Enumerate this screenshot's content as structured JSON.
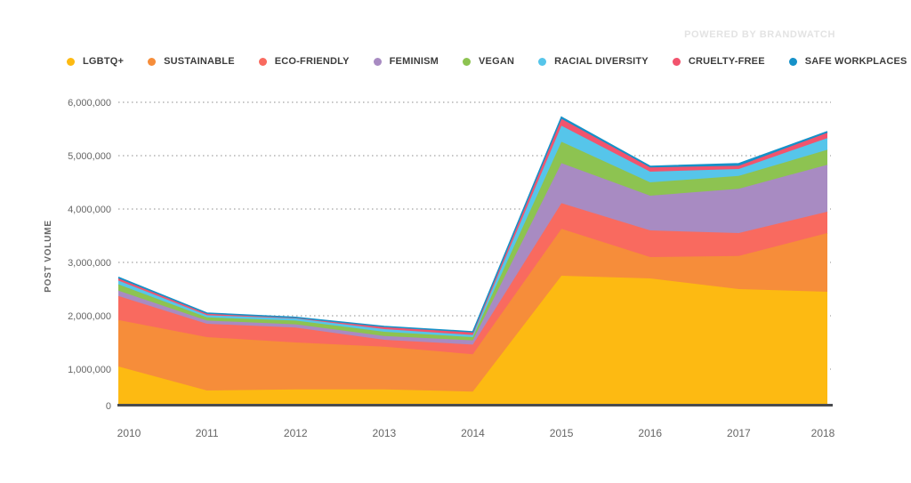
{
  "header": {
    "powered_by": "POWERED BY BRANDWATCH"
  },
  "chart_data": {
    "type": "area",
    "stacked": true,
    "title": "",
    "xlabel": "",
    "ylabel": "POST VOLUME",
    "x": [
      "2010",
      "2011",
      "2012",
      "2013",
      "2014",
      "2015",
      "2016",
      "2017",
      "2018"
    ],
    "ylim": [
      0,
      6000000
    ],
    "y_tick_interval": 1000000,
    "y_tick_labels": [
      "0",
      "1,000,000",
      "2,000,000",
      "3,000,000",
      "4,000,000",
      "5,000,000",
      "6,000,000"
    ],
    "grid": "horizontal-dotted",
    "legend_position": "top",
    "baseline_color": "#4a4c50",
    "gridline_color": "#b3b3b3",
    "series": [
      {
        "name": "LGBTQ+",
        "color": "#FDBA12",
        "values": [
          1050000,
          600000,
          620000,
          620000,
          580000,
          2750000,
          2700000,
          2500000,
          2450000
        ]
      },
      {
        "name": "SUSTAINABLE",
        "color": "#F68D3A",
        "values": [
          870000,
          1000000,
          880000,
          800000,
          700000,
          880000,
          400000,
          620000,
          1100000
        ]
      },
      {
        "name": "ECO-FRIENDLY",
        "color": "#F96A5F",
        "values": [
          450000,
          250000,
          280000,
          130000,
          180000,
          480000,
          500000,
          430000,
          400000
        ]
      },
      {
        "name": "FEMINISM",
        "color": "#A88BC2",
        "values": [
          100000,
          60000,
          60000,
          70000,
          80000,
          750000,
          650000,
          830000,
          880000
        ]
      },
      {
        "name": "VEGAN",
        "color": "#8DC351",
        "values": [
          120000,
          60000,
          70000,
          80000,
          60000,
          400000,
          250000,
          240000,
          280000
        ]
      },
      {
        "name": "RACIAL DIVERSITY",
        "color": "#56C5EA",
        "values": [
          70000,
          40000,
          40000,
          50000,
          40000,
          300000,
          200000,
          130000,
          220000
        ]
      },
      {
        "name": "CRUELTY-FREE",
        "color": "#F2536D",
        "values": [
          40000,
          30000,
          15000,
          40000,
          50000,
          130000,
          80000,
          60000,
          100000
        ]
      },
      {
        "name": "SAFE WORKPLACES",
        "color": "#1691C8",
        "values": [
          20000,
          10000,
          5000,
          10000,
          10000,
          30000,
          20000,
          40000,
          20000
        ]
      }
    ]
  }
}
